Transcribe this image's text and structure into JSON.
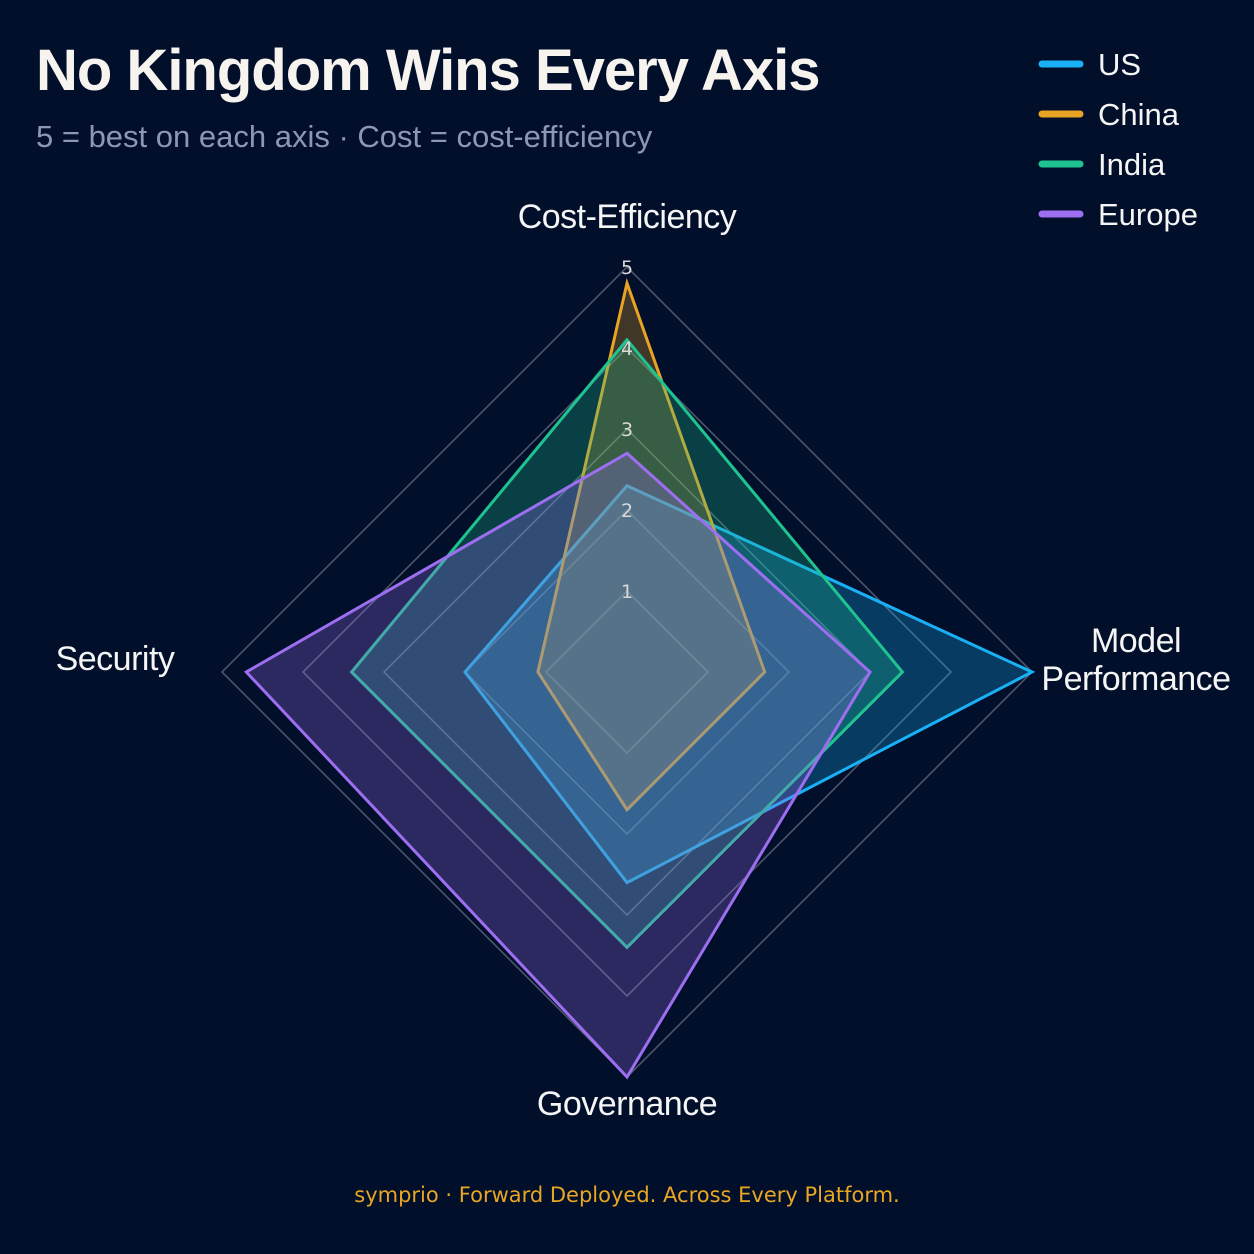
{
  "title": "No Kingdom Wins Every Axis",
  "subtitle": "5 = best on each axis · Cost = cost-efficiency",
  "footer": "symprio · Forward Deployed. Across Every Platform.",
  "chart_data": {
    "type": "radar",
    "axes": [
      {
        "key": "cost",
        "label_lines": [
          "Cost-Efficiency"
        ]
      },
      {
        "key": "performance",
        "label_lines": [
          "Model",
          "Performance"
        ]
      },
      {
        "key": "governance",
        "label_lines": [
          "Governance"
        ]
      },
      {
        "key": "security",
        "label_lines": [
          "Security"
        ]
      }
    ],
    "scale": {
      "min": 0,
      "max": 5
    },
    "ticks": [
      "1",
      "2",
      "3",
      "4",
      "5"
    ],
    "grid": true,
    "legend_position": "top-right",
    "series": [
      {
        "name": "US",
        "color": "#1ab0f5",
        "values": [
          2.3,
          5,
          2.6,
          2.0
        ]
      },
      {
        "name": "China",
        "color": "#e8a324",
        "values": [
          4.8,
          1.7,
          1.7,
          1.1
        ]
      },
      {
        "name": "India",
        "color": "#1fc38f",
        "values": [
          4.1,
          3.4,
          3.4,
          3.4
        ]
      },
      {
        "name": "Europe",
        "color": "#9d6ef0",
        "values": [
          2.7,
          3.0,
          5.0,
          4.7
        ]
      }
    ]
  }
}
